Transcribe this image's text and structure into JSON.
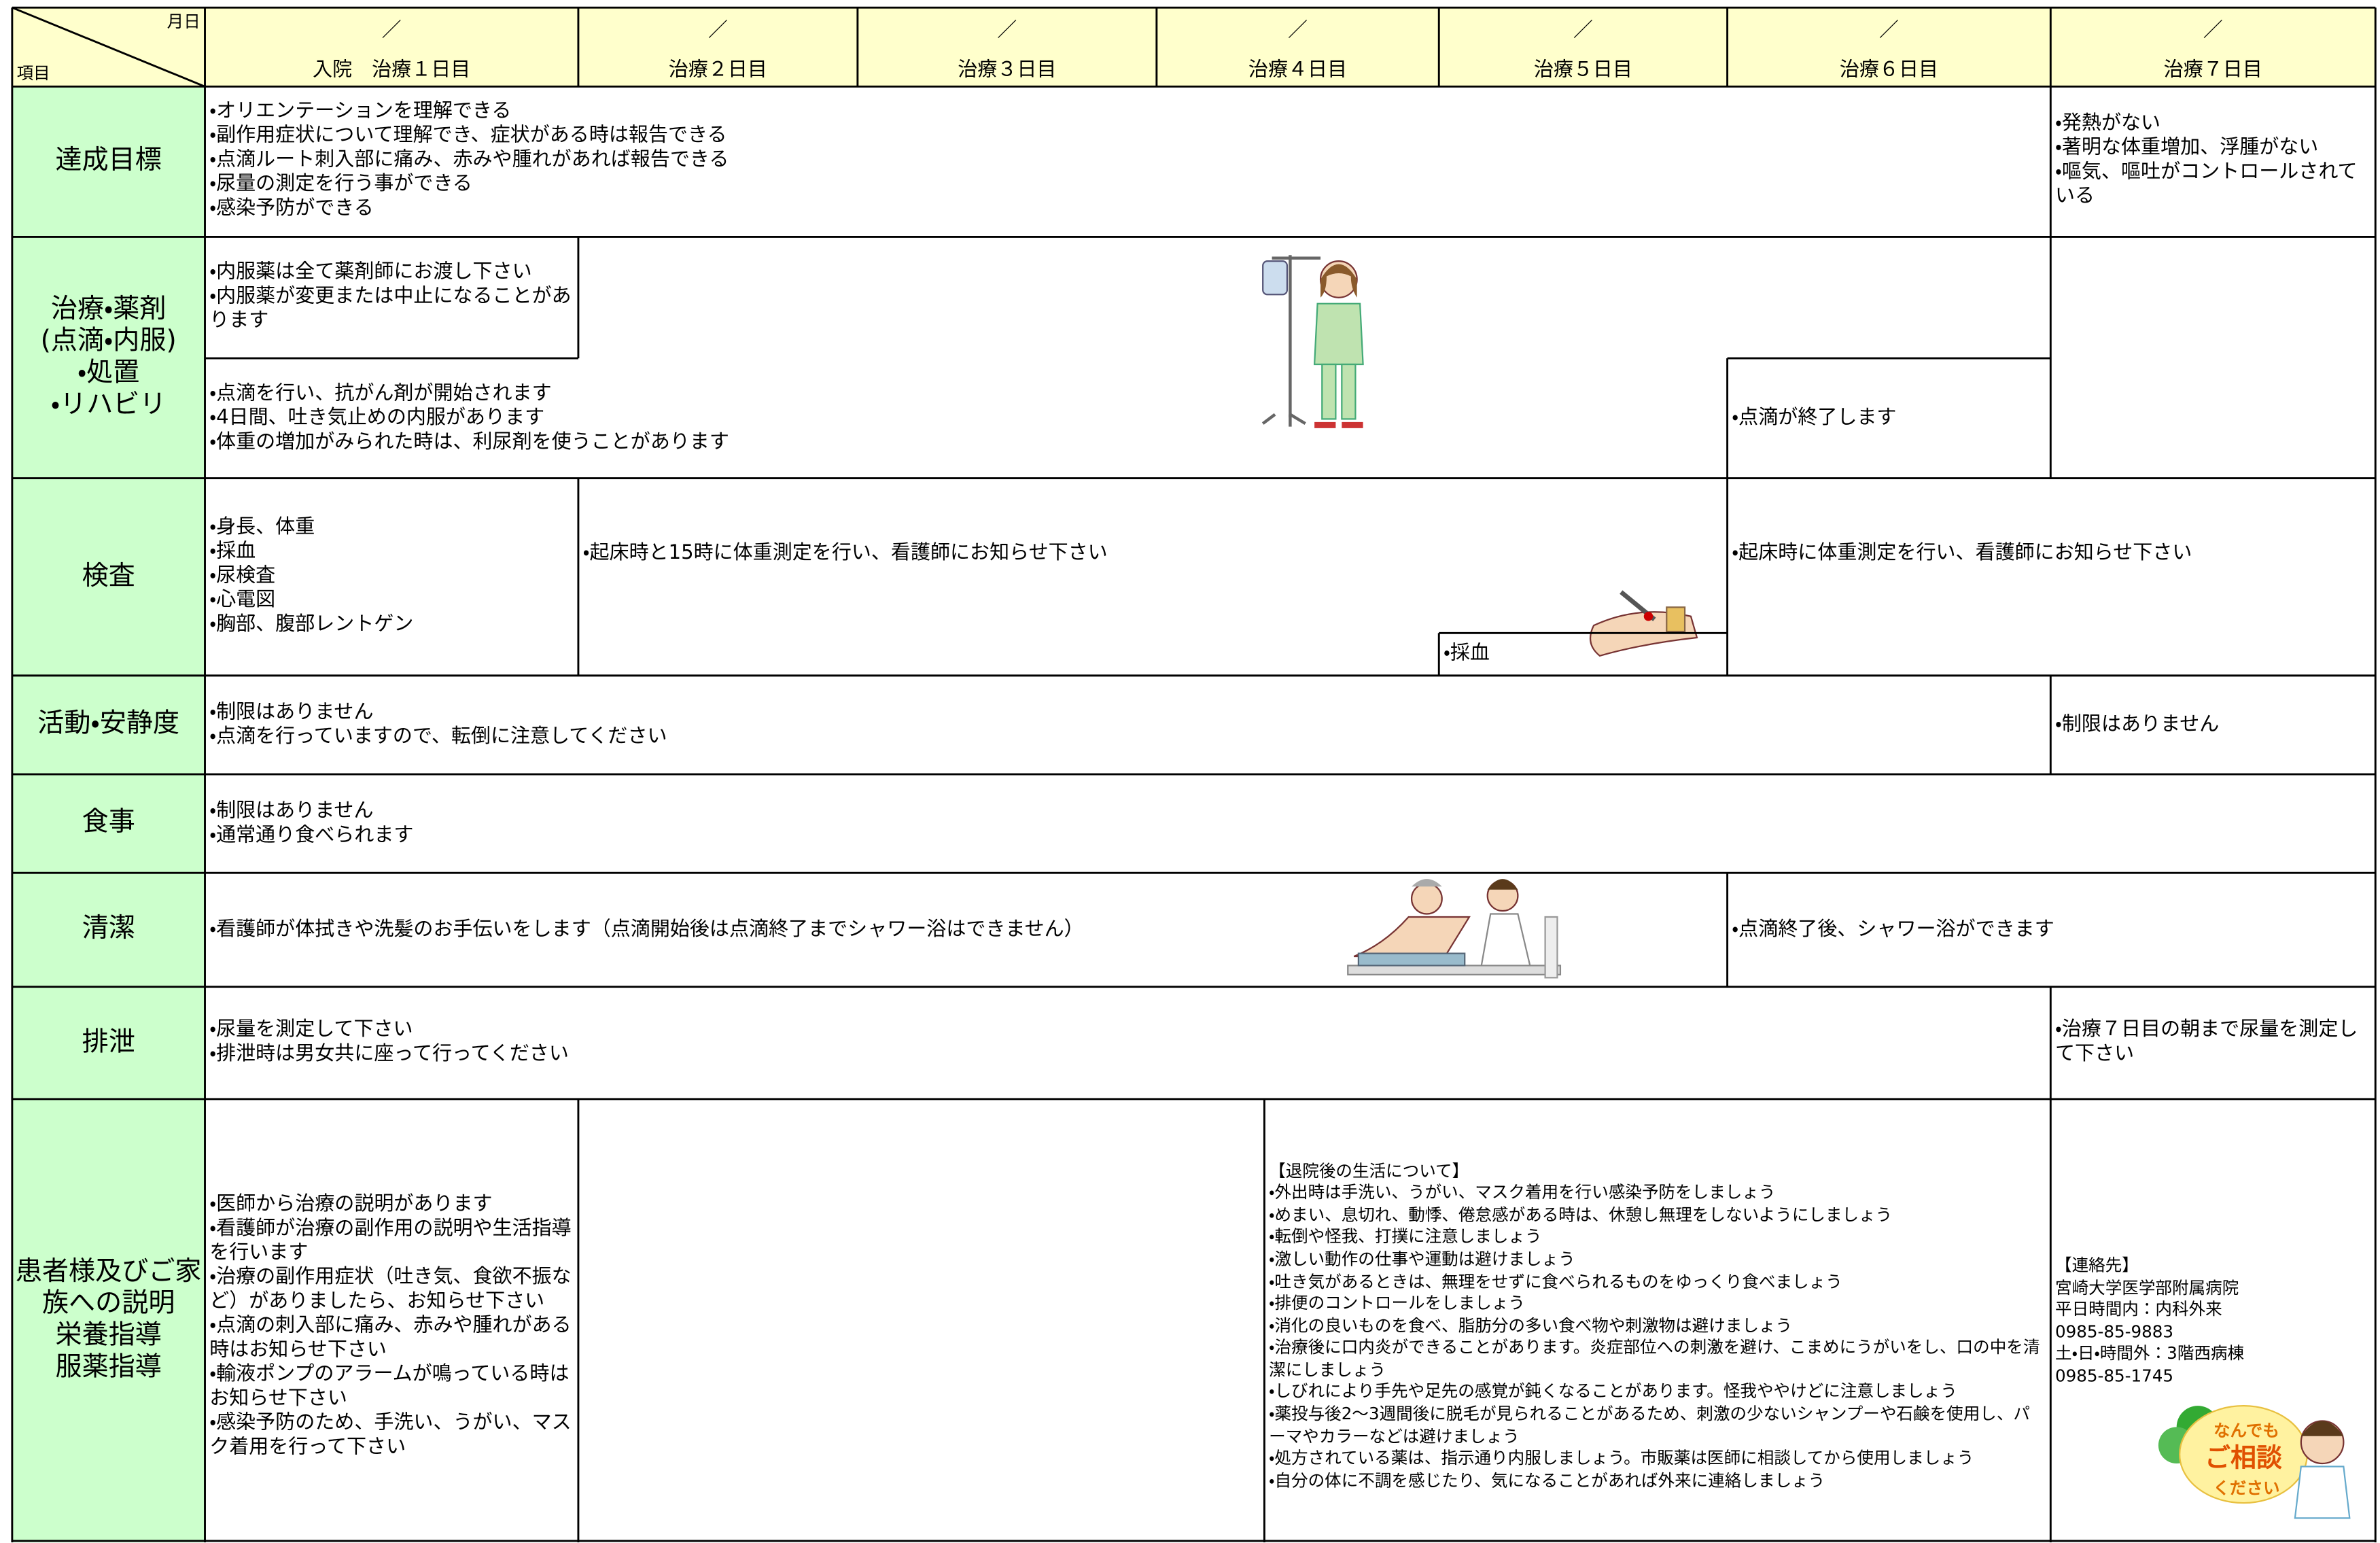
{
  "header": {
    "col_date": "月日",
    "row_item": "項目",
    "days": [
      {
        "mark": "／",
        "label": "入院　治療１日目"
      },
      {
        "mark": "／",
        "label": "治療２日目"
      },
      {
        "mark": "／",
        "label": "治療３日目"
      },
      {
        "mark": "／",
        "label": "治療４日目"
      },
      {
        "mark": "／",
        "label": "治療５日目"
      },
      {
        "mark": "／",
        "label": "治療６日目"
      },
      {
        "mark": "／",
        "label": "治療７日目"
      }
    ]
  },
  "rows": [
    {
      "label": [
        "達成目標"
      ],
      "cells": [
        {
          "lines": [
            "・オリエンテーションを理解できる",
            "・副作用症状について理解でき、症状がある時は報告できる",
            "・点滴ルート刺入部に痛み、赤みや腫れがあれば報告できる",
            "・尿量の測定を行う事ができる",
            "・感染予防ができる"
          ]
        },
        {
          "lines": [
            "・発熱がない",
            "・著明な体重増加、浮腫がない",
            "・嘔気、嘔吐がコントロールされている"
          ]
        }
      ]
    },
    {
      "label": [
        "治療・薬剤",
        "(点滴・内服)",
        "・処置",
        "・リハビリ"
      ],
      "cells": [
        {
          "lines": [
            "・内服薬は全て薬剤師にお渡し下さい",
            "・内服薬が変更または中止になることがあります"
          ]
        },
        {
          "lines": [
            "・点滴を行い、抗がん剤が開始されます",
            "・4日間、吐き気止めの内服があります",
            "・体重の増加がみられた時は、利尿剤を使うことがあります"
          ]
        },
        {
          "lines": [
            "・点滴が終了します"
          ]
        }
      ]
    },
    {
      "label": [
        "検査"
      ],
      "cells": [
        {
          "lines": [
            "・身長、体重",
            "・採血",
            "・尿検査",
            "・心電図",
            "・胸部、腹部レントゲン"
          ]
        },
        {
          "lines": [
            "・起床時と15時に体重測定を行い、看護師にお知らせ下さい"
          ]
        },
        {
          "lines": [
            "・採血"
          ]
        },
        {
          "lines": [
            "・起床時に体重測定を行い、看護師にお知らせ下さい"
          ]
        }
      ]
    },
    {
      "label": [
        "活動・安静度"
      ],
      "cells": [
        {
          "lines": [
            "・制限はありません",
            "・点滴を行っていますので、転倒に注意してください"
          ]
        },
        {
          "lines": [
            "・制限はありません"
          ]
        }
      ]
    },
    {
      "label": [
        "食事"
      ],
      "cells": [
        {
          "lines": [
            "・制限はありません",
            "・通常通り食べられます"
          ]
        }
      ]
    },
    {
      "label": [
        "清潔"
      ],
      "cells": [
        {
          "lines": [
            "・看護師が体拭きや洗髪のお手伝いをします（点滴開始後は点滴終了までシャワー浴はできません）"
          ]
        },
        {
          "lines": [
            "・点滴終了後、シャワー浴ができます"
          ]
        }
      ]
    },
    {
      "label": [
        "排泄"
      ],
      "cells": [
        {
          "lines": [
            "・尿量を測定して下さい",
            "・排泄時は男女共に座って行ってください"
          ]
        },
        {
          "lines": [
            "・治療７日目の朝まで尿量を測定して下さい"
          ]
        }
      ]
    },
    {
      "label": [
        "患者様及びご家族への説明",
        "栄養指導",
        "服薬指導"
      ],
      "cells": [
        {
          "lines": [
            "・医師から治療の説明があります",
            "・看護師が治療の副作用の説明や生活指導を行います",
            "・治療の副作用症状（吐き気、食欲不振など）がありましたら、お知らせ下さい",
            "・点滴の刺入部に痛み、赤みや腫れがある時はお知らせ下さい",
            "・輸液ポンプのアラームが鳴っている時はお知らせ下さい",
            "・感染予防のため、手洗い、うがい、マスク着用を行って下さい"
          ]
        },
        {
          "lines": [
            "【退院後の生活について】",
            "・外出時は手洗い、うがい、マスク着用を行い感染予防をしましょう",
            "・めまい、息切れ、動悸、倦怠感がある時は、休憩し無理をしないようにしましょう",
            "・転倒や怪我、打撲に注意しましょう",
            "・激しい動作の仕事や運動は避けましょう",
            "・吐き気があるときは、無理をせずに食べられるものをゆっくり食べましょう",
            "・排便のコントロールをしましょう",
            "・消化の良いものを食べ、脂肪分の多い食べ物や刺激物は避けましょう",
            "・治療後に口内炎ができることがあります。炎症部位への刺激を避け、こまめにうがいをし、口の中を清潔にしましょう",
            "・しびれにより手先や足先の感覚が鈍くなることがあります。怪我ややけどに注意しましょう",
            "・薬投与後2～3週間後に脱毛が見られることがあるため、刺激の少ないシャンプーや石鹸を使用し、パーマやカラーなどは避けましょう",
            "・処方されている薬は、指示通り内服しましょう。市販薬は医師に相談してから使用しましょう",
            "・自分の体に不調を感じたり、気になることがあれば外来に連絡しましょう"
          ]
        },
        {
          "lines": [
            "【連絡先】",
            "宮崎大学医学部附属病院",
            "平日時間内：内科外来",
            "0985-85-9883",
            "土・日・時間外：3階西病棟",
            "0985-85-1745"
          ]
        }
      ]
    }
  ],
  "badge": [
    "なんでも",
    "ご相談",
    "ください"
  ]
}
